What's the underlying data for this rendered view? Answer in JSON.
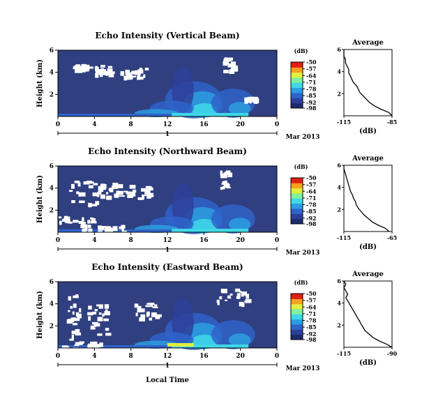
{
  "figure": {
    "xlabel": "Local Time",
    "colors": {
      "background_field": "#2f3f7f",
      "colormap": [
        "#1e2a6e",
        "#2e3f9a",
        "#2f63c8",
        "#2c9de0",
        "#3fd8e8",
        "#7ff0a0",
        "#e0f040",
        "#f8a020",
        "#e02010"
      ]
    }
  },
  "chart_data": [
    {
      "type": "heatmap",
      "title": "Echo Intensity (Vertical Beam)",
      "ylabel": "Height (km)",
      "xlim": [
        0,
        24
      ],
      "ylim": [
        0,
        6
      ],
      "x_ticks": [
        "0",
        "4",
        "8",
        "12",
        "16",
        "20",
        "0"
      ],
      "y_ticks": [
        "2",
        "4",
        "6"
      ],
      "date_axis": {
        "day_label": "1",
        "month_year": "Mar 2013"
      },
      "colorbar": {
        "unit": "(dB)",
        "range": [
          -98,
          -50
        ],
        "ticks": [
          "-50",
          "-57",
          "-64",
          "-71",
          "-78",
          "-85",
          "-92",
          "-98"
        ]
      },
      "profile": {
        "title": "Average",
        "xlabel": "(dB)",
        "x_ticks": [
          "-115",
          "-85"
        ],
        "xlim": [
          -115,
          -85
        ],
        "y_ticks": [
          "2",
          "4",
          "6"
        ],
        "ylim": [
          0,
          6
        ],
        "points": [
          [
            -85,
            0.0
          ],
          [
            -87,
            0.3
          ],
          [
            -92,
            0.6
          ],
          [
            -96,
            0.9
          ],
          [
            -99,
            1.2
          ],
          [
            -101,
            1.5
          ],
          [
            -103,
            1.8
          ],
          [
            -105,
            2.1
          ],
          [
            -106,
            2.4
          ],
          [
            -107,
            2.7
          ],
          [
            -109,
            3.0
          ],
          [
            -110,
            3.3
          ],
          [
            -111,
            3.6
          ],
          [
            -112,
            3.9
          ],
          [
            -112,
            4.2
          ],
          [
            -113,
            4.5
          ],
          [
            -114,
            4.8
          ],
          [
            -114,
            5.1
          ],
          [
            -115,
            5.4
          ],
          [
            -115,
            5.7
          ],
          [
            -115,
            6.0
          ]
        ]
      }
    },
    {
      "type": "heatmap",
      "title": "Echo Intensity (Northward Beam)",
      "ylabel": "Height (km)",
      "xlim": [
        0,
        24
      ],
      "ylim": [
        0,
        6
      ],
      "x_ticks": [
        "0",
        "4",
        "8",
        "12",
        "16",
        "20",
        "0"
      ],
      "y_ticks": [
        "2",
        "4",
        "6"
      ],
      "date_axis": {
        "day_label": "1",
        "month_year": "Mar 2013"
      },
      "colorbar": {
        "unit": "(dB)",
        "range": [
          -98,
          -50
        ],
        "ticks": [
          "-50",
          "-57",
          "-64",
          "-71",
          "-78",
          "-85",
          "-92",
          "-98"
        ]
      },
      "profile": {
        "title": "Average",
        "xlabel": "(dB)",
        "x_ticks": [
          "-115",
          "-65"
        ],
        "xlim": [
          -115,
          -65
        ],
        "y_ticks": [
          "2",
          "4",
          "6"
        ],
        "ylim": [
          0,
          6
        ],
        "points": [
          [
            -68,
            0.0
          ],
          [
            -72,
            0.3
          ],
          [
            -80,
            0.6
          ],
          [
            -86,
            0.9
          ],
          [
            -90,
            1.2
          ],
          [
            -94,
            1.5
          ],
          [
            -97,
            1.8
          ],
          [
            -100,
            2.1
          ],
          [
            -102,
            2.4
          ],
          [
            -103,
            2.7
          ],
          [
            -105,
            3.0
          ],
          [
            -106,
            3.3
          ],
          [
            -108,
            3.6
          ],
          [
            -109,
            3.9
          ],
          [
            -110,
            4.2
          ],
          [
            -111,
            4.5
          ],
          [
            -112,
            4.8
          ],
          [
            -113,
            5.1
          ],
          [
            -114,
            5.4
          ],
          [
            -115,
            5.7
          ],
          [
            -115,
            6.0
          ]
        ]
      }
    },
    {
      "type": "heatmap",
      "title": "Echo Intensity (Eastward Beam)",
      "ylabel": "Height (km)",
      "xlim": [
        0,
        24
      ],
      "ylim": [
        0,
        6
      ],
      "x_ticks": [
        "0",
        "4",
        "8",
        "12",
        "16",
        "20",
        "0"
      ],
      "y_ticks": [
        "2",
        "4",
        "6"
      ],
      "date_axis": {
        "day_label": "1",
        "month_year": "Mar 2013"
      },
      "colorbar": {
        "unit": "(dB)",
        "range": [
          -98,
          -50
        ],
        "ticks": [
          "-50",
          "-57",
          "-64",
          "-71",
          "-78",
          "-85",
          "-92",
          "-98"
        ]
      },
      "profile": {
        "title": "Average",
        "xlabel": "(dB)",
        "x_ticks": [
          "-115",
          "-90"
        ],
        "xlim": [
          -115,
          -90
        ],
        "y_ticks": [
          "2",
          "4",
          "6"
        ],
        "ylim": [
          0,
          6
        ],
        "points": [
          [
            -90,
            0.0
          ],
          [
            -93,
            0.3
          ],
          [
            -97,
            0.6
          ],
          [
            -100,
            0.9
          ],
          [
            -102,
            1.2
          ],
          [
            -104,
            1.5
          ],
          [
            -105,
            1.8
          ],
          [
            -106,
            2.1
          ],
          [
            -107,
            2.4
          ],
          [
            -108,
            2.7
          ],
          [
            -109,
            3.0
          ],
          [
            -110,
            3.3
          ],
          [
            -111,
            3.6
          ],
          [
            -112,
            3.9
          ],
          [
            -113,
            4.2
          ],
          [
            -114,
            4.5
          ],
          [
            -113,
            4.8
          ],
          [
            -114,
            5.1
          ],
          [
            -115,
            5.4
          ],
          [
            -114,
            5.7
          ],
          [
            -115,
            6.0
          ]
        ]
      }
    }
  ]
}
